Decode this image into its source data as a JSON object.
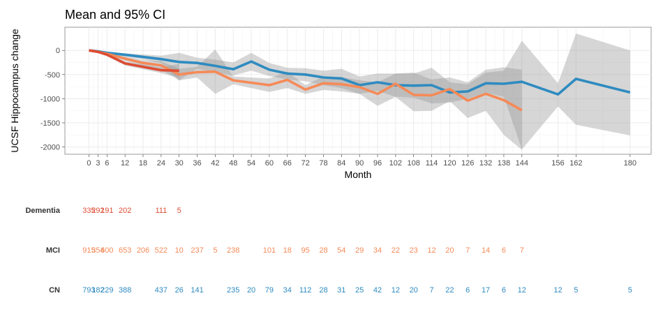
{
  "chart_data": {
    "type": "line",
    "title": "Mean and 95% CI",
    "xlabel": "Month",
    "ylabel": "UCSF Hippocampus change",
    "xlim": [
      -8,
      187
    ],
    "ylim": [
      -2150,
      480
    ],
    "x_ticks": [
      0,
      3,
      6,
      12,
      18,
      24,
      30,
      36,
      42,
      48,
      54,
      60,
      66,
      72,
      78,
      84,
      90,
      96,
      102,
      108,
      114,
      120,
      126,
      132,
      138,
      144,
      156,
      162,
      180
    ],
    "y_ticks": [
      0,
      -500,
      -1000,
      -1500,
      -2000
    ],
    "y_tick_labels": [
      "0",
      "-500",
      "-1000",
      "-1500",
      "-2000"
    ],
    "grid": true,
    "colors": {
      "CN": "#2e8bc0",
      "MCI": "#f58a58",
      "Dementia": "#dd4c33",
      "ci": "#999999"
    },
    "series": [
      {
        "group": "CN",
        "x": [
          0,
          3,
          6,
          12,
          24,
          30,
          36,
          42,
          48,
          54,
          60,
          66,
          72,
          78,
          84,
          90,
          96,
          102,
          108,
          114,
          120,
          126,
          132,
          138,
          144,
          156,
          162,
          180
        ],
        "y": [
          0,
          -20,
          -50,
          -90,
          -180,
          -240,
          -260,
          -320,
          -390,
          -230,
          -400,
          -480,
          -500,
          -560,
          -580,
          -720,
          -660,
          -720,
          -730,
          -720,
          -870,
          -850,
          -680,
          -690,
          -650,
          -910,
          -590,
          -870
        ],
        "lower": [
          -10,
          -30,
          -70,
          -120,
          -260,
          -620,
          -380,
          -450,
          -520,
          -420,
          -530,
          -600,
          -640,
          -720,
          -780,
          -900,
          -840,
          -960,
          -980,
          -1100,
          -1080,
          -1000,
          -880,
          -960,
          -2050,
          -1160,
          -1540,
          -1760
        ],
        "upper": [
          10,
          -10,
          -30,
          -60,
          -110,
          -50,
          -150,
          -190,
          -250,
          -50,
          -260,
          -360,
          -370,
          -420,
          -380,
          -540,
          -480,
          -480,
          -480,
          -360,
          -660,
          -700,
          -460,
          -420,
          200,
          -680,
          350,
          0
        ]
      },
      {
        "group": "MCI",
        "x": [
          0,
          3,
          6,
          12,
          18,
          24,
          30,
          36,
          42,
          48,
          60,
          66,
          72,
          78,
          84,
          90,
          96,
          102,
          108,
          114,
          120,
          126,
          132,
          138,
          144
        ],
        "y": [
          0,
          -30,
          -70,
          -170,
          -260,
          -310,
          -500,
          -450,
          -440,
          -620,
          -720,
          -610,
          -810,
          -680,
          -700,
          -760,
          -900,
          -690,
          -920,
          -930,
          -800,
          -1040,
          -900,
          -1030,
          -1240
        ],
        "lower": [
          -10,
          -50,
          -100,
          -220,
          -320,
          -400,
          -620,
          -560,
          -900,
          -700,
          -860,
          -780,
          -900,
          -820,
          -850,
          -900,
          -1150,
          -960,
          -1260,
          -1250,
          -1050,
          -1400,
          -1250,
          -1750,
          -2060
        ],
        "upper": [
          10,
          -10,
          -40,
          -120,
          -200,
          -220,
          -380,
          -340,
          20,
          -540,
          -580,
          -440,
          -720,
          -540,
          -550,
          -620,
          -660,
          -480,
          -460,
          -600,
          -560,
          -660,
          -400,
          -350,
          -400
        ]
      },
      {
        "group": "Dementia",
        "x": [
          0,
          3,
          6,
          12,
          24,
          30
        ],
        "y": [
          0,
          -30,
          -90,
          -270,
          -410,
          -420
        ],
        "lower": [
          -15,
          -50,
          -120,
          -310,
          -470,
          -560
        ],
        "upper": [
          15,
          -10,
          -60,
          -230,
          -350,
          -280
        ]
      }
    ],
    "counts": [
      {
        "group": "Dementia",
        "label": "Dementia",
        "x": [
          0,
          3,
          6,
          12,
          24,
          30
        ],
        "n": [
          "335",
          "292",
          "191",
          "202",
          "111",
          "5"
        ]
      },
      {
        "group": "MCI",
        "label": "MCI",
        "x": [
          0,
          3,
          6,
          12,
          18,
          24,
          30,
          36,
          42,
          48,
          60,
          66,
          72,
          78,
          84,
          90,
          96,
          102,
          108,
          114,
          120,
          126,
          132,
          138,
          144
        ],
        "n": [
          "915",
          "354",
          "600",
          "653",
          "206",
          "522",
          "10",
          "237",
          "5",
          "238",
          "101",
          "18",
          "95",
          "28",
          "54",
          "29",
          "34",
          "22",
          "23",
          "12",
          "20",
          "7",
          "14",
          "6",
          "7"
        ]
      },
      {
        "group": "CN",
        "label": "CN",
        "x": [
          0,
          3,
          6,
          12,
          24,
          30,
          36,
          48,
          54,
          60,
          66,
          72,
          78,
          84,
          90,
          96,
          102,
          108,
          114,
          120,
          126,
          132,
          138,
          144,
          156,
          162,
          180
        ],
        "n": [
          "793",
          "182",
          "229",
          "388",
          "437",
          "26",
          "141",
          "235",
          "20",
          "79",
          "34",
          "112",
          "28",
          "31",
          "25",
          "42",
          "12",
          "20",
          "7",
          "22",
          "6",
          "17",
          "6",
          "12",
          "12",
          "5",
          "5"
        ]
      }
    ]
  }
}
